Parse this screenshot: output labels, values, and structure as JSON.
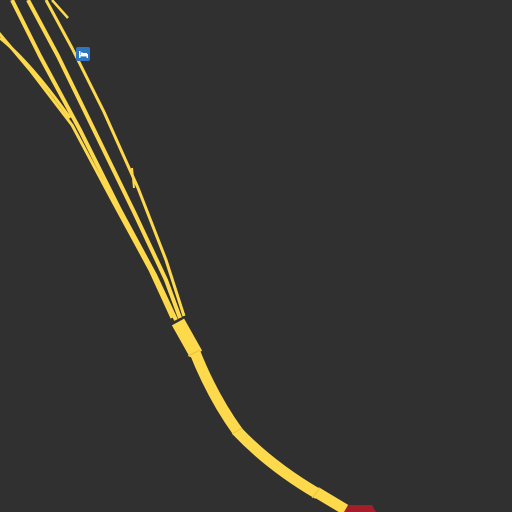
{
  "map": {
    "background_color": "#303030",
    "road_color": "#fdd94b",
    "road_edge_color": "#e8c33a",
    "restricted_road_color": "#a31e2a",
    "poi": [
      {
        "type": "lodging",
        "icon": "bed-icon",
        "color": "#2e76c0"
      }
    ]
  }
}
